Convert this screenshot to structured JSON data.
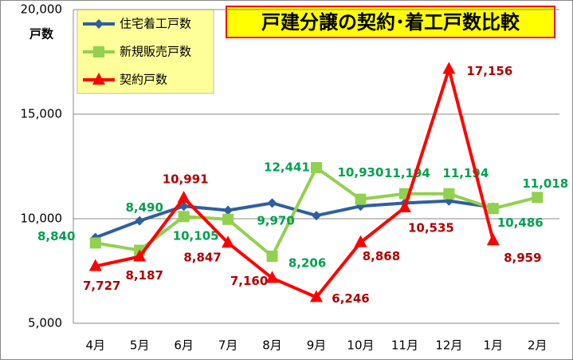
{
  "chart_data": {
    "type": "line",
    "title": "戸建分譲の契約･着工戸数比較",
    "y_label": "戸数",
    "categories": [
      "4月",
      "5月",
      "6月",
      "7月",
      "8月",
      "9月",
      "10月",
      "11月",
      "12月",
      "1月",
      "2月"
    ],
    "series": [
      {
        "name": "住宅着工戸数",
        "color": "#2e5fa0",
        "marker": "diamond",
        "values": [
          9100,
          9900,
          10600,
          10400,
          10750,
          10150,
          10600,
          10750,
          10850,
          10550,
          null
        ]
      },
      {
        "name": "新規販売戸数",
        "color": "#92d050",
        "marker": "square",
        "label_color": "#00a050",
        "values": [
          8840,
          8490,
          10105,
          9970,
          8206,
          12441,
          10930,
          11194,
          11194,
          10486,
          11018
        ],
        "value_labels": [
          "8,840",
          "8,490",
          "10,105",
          "9,970",
          "8,206",
          "12,441",
          "10,930",
          "11,194",
          "11,194",
          "10,486",
          "11,018"
        ]
      },
      {
        "name": "契約戸数",
        "color": "#ff0000",
        "marker": "triangle",
        "label_color": "#b00000",
        "values": [
          7727,
          8187,
          10991,
          8847,
          7160,
          6246,
          8868,
          10535,
          17156,
          8959,
          null
        ],
        "value_labels": [
          "7,727",
          "8,187",
          "10,991",
          "8,847",
          "7,160",
          "6,246",
          "8,868",
          "10,535",
          "17,156",
          "8,959",
          null
        ]
      }
    ],
    "ylim": [
      5000,
      20000
    ],
    "yticks": [
      {
        "value": 5000,
        "label": "5,000"
      },
      {
        "value": 10000,
        "label": "10,000"
      },
      {
        "value": 15000,
        "label": "15,000"
      },
      {
        "value": 20000,
        "label": "20,000"
      }
    ],
    "grid": true,
    "legend": "upper-left"
  }
}
